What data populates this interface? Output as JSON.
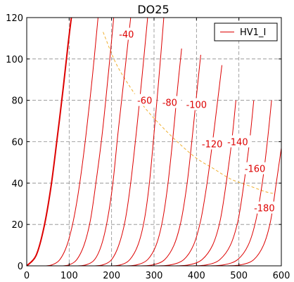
{
  "chart_data": {
    "type": "line",
    "title": "DO25",
    "xlabel": "",
    "ylabel": "",
    "xlim": [
      0,
      600
    ],
    "ylim": [
      0,
      120
    ],
    "x_ticks": [
      0,
      100,
      200,
      300,
      400,
      500,
      600
    ],
    "y_ticks": [
      0,
      20,
      40,
      60,
      80,
      100,
      120
    ],
    "grid": true,
    "legend_position": "top-right",
    "legend_entries": [
      "HV1_I"
    ],
    "colors": {
      "curves": "#dd0000",
      "load_line": "#f0b030"
    },
    "curve_labels": [
      {
        "text": "-40",
        "x": 235,
        "y": 112
      },
      {
        "text": "-60",
        "x": 278,
        "y": 80
      },
      {
        "text": "-80",
        "x": 337,
        "y": 79
      },
      {
        "text": "-100",
        "x": 400,
        "y": 78
      },
      {
        "text": "-120",
        "x": 437,
        "y": 59
      },
      {
        "text": "-140",
        "x": 497,
        "y": 60
      },
      {
        "text": "-160",
        "x": 538,
        "y": 47
      },
      {
        "text": "-180",
        "x": 560,
        "y": 28
      }
    ],
    "series": [
      {
        "grid_v": 0,
        "bold": true,
        "points": [
          [
            0,
            0
          ],
          [
            22,
            5
          ],
          [
            40,
            18
          ],
          [
            57,
            38
          ],
          [
            72,
            62
          ],
          [
            86,
            86
          ],
          [
            98,
            108
          ],
          [
            110,
            128
          ]
        ]
      },
      {
        "grid_v": -20,
        "points": [
          [
            45,
            0
          ],
          [
            60,
            0.5
          ],
          [
            78,
            3
          ],
          [
            95,
            10
          ],
          [
            110,
            22
          ],
          [
            125,
            40
          ],
          [
            140,
            64
          ],
          [
            155,
            92
          ],
          [
            168,
            120
          ]
        ]
      },
      {
        "grid_v": -40,
        "points": [
          [
            85,
            0
          ],
          [
            100,
            0.5
          ],
          [
            118,
            3
          ],
          [
            135,
            10
          ],
          [
            150,
            22
          ],
          [
            163,
            40
          ],
          [
            178,
            64
          ],
          [
            192,
            92
          ],
          [
            205,
            120
          ]
        ]
      },
      {
        "grid_v": -60,
        "points": [
          [
            120,
            0
          ],
          [
            140,
            0.5
          ],
          [
            160,
            3
          ],
          [
            176,
            10
          ],
          [
            190,
            22
          ],
          [
            203,
            40
          ],
          [
            215,
            64
          ],
          [
            230,
            92
          ],
          [
            245,
            120
          ]
        ]
      },
      {
        "grid_v": -80,
        "points": [
          [
            160,
            0
          ],
          [
            180,
            0.5
          ],
          [
            200,
            3
          ],
          [
            217,
            10
          ],
          [
            232,
            22
          ],
          [
            245,
            40
          ],
          [
            258,
            64
          ],
          [
            272,
            92
          ],
          [
            285,
            120
          ]
        ]
      },
      {
        "grid_v": -100,
        "points": [
          [
            200,
            0
          ],
          [
            222,
            0.5
          ],
          [
            243,
            3
          ],
          [
            262,
            10
          ],
          [
            277,
            22
          ],
          [
            289,
            40
          ],
          [
            300,
            64
          ],
          [
            312,
            92
          ],
          [
            323,
            120
          ]
        ]
      },
      {
        "grid_v": -120,
        "points": [
          [
            235,
            0
          ],
          [
            260,
            0.5
          ],
          [
            285,
            3
          ],
          [
            305,
            10
          ],
          [
            320,
            22
          ],
          [
            333,
            40
          ],
          [
            345,
            63
          ],
          [
            355,
            85
          ],
          [
            365,
            105
          ]
        ]
      },
      {
        "grid_v": -140,
        "points": [
          [
            270,
            0
          ],
          [
            298,
            0.5
          ],
          [
            325,
            3
          ],
          [
            347,
            10
          ],
          [
            364,
            22
          ],
          [
            378,
            40
          ],
          [
            390,
            62
          ],
          [
            400,
            82
          ],
          [
            410,
            102
          ]
        ]
      },
      {
        "grid_v": -160,
        "points": [
          [
            310,
            0
          ],
          [
            340,
            0.5
          ],
          [
            370,
            3
          ],
          [
            393,
            10
          ],
          [
            410,
            22
          ],
          [
            425,
            40
          ],
          [
            438,
            60
          ],
          [
            450,
            80
          ],
          [
            460,
            97
          ]
        ]
      },
      {
        "grid_v": -180,
        "points": [
          [
            350,
            0
          ],
          [
            383,
            0.5
          ],
          [
            413,
            3
          ],
          [
            438,
            10
          ],
          [
            456,
            22
          ],
          [
            470,
            40
          ],
          [
            483,
            60
          ],
          [
            493,
            80
          ]
        ]
      },
      {
        "grid_v": -200,
        "points": [
          [
            390,
            0
          ],
          [
            425,
            0.5
          ],
          [
            455,
            3
          ],
          [
            480,
            10
          ],
          [
            498,
            22
          ],
          [
            512,
            40
          ],
          [
            525,
            60
          ],
          [
            535,
            80
          ]
        ]
      },
      {
        "grid_v": -220,
        "points": [
          [
            430,
            0
          ],
          [
            465,
            0.5
          ],
          [
            497,
            3
          ],
          [
            522,
            10
          ],
          [
            540,
            22
          ],
          [
            555,
            40
          ],
          [
            567,
            60
          ],
          [
            577,
            80
          ]
        ]
      },
      {
        "grid_v": -240,
        "points": [
          [
            470,
            0
          ],
          [
            505,
            0.5
          ],
          [
            535,
            3
          ],
          [
            558,
            10
          ],
          [
            575,
            22
          ],
          [
            588,
            40
          ],
          [
            600,
            57
          ]
        ]
      }
    ],
    "load_line": {
      "points": [
        [
          180,
          113
        ],
        [
          210,
          98
        ],
        [
          245,
          86
        ],
        [
          280,
          76
        ],
        [
          320,
          67
        ],
        [
          360,
          59
        ],
        [
          400,
          52
        ],
        [
          440,
          47
        ],
        [
          480,
          42
        ],
        [
          520,
          39
        ],
        [
          560,
          36
        ],
        [
          580,
          35
        ]
      ]
    }
  }
}
